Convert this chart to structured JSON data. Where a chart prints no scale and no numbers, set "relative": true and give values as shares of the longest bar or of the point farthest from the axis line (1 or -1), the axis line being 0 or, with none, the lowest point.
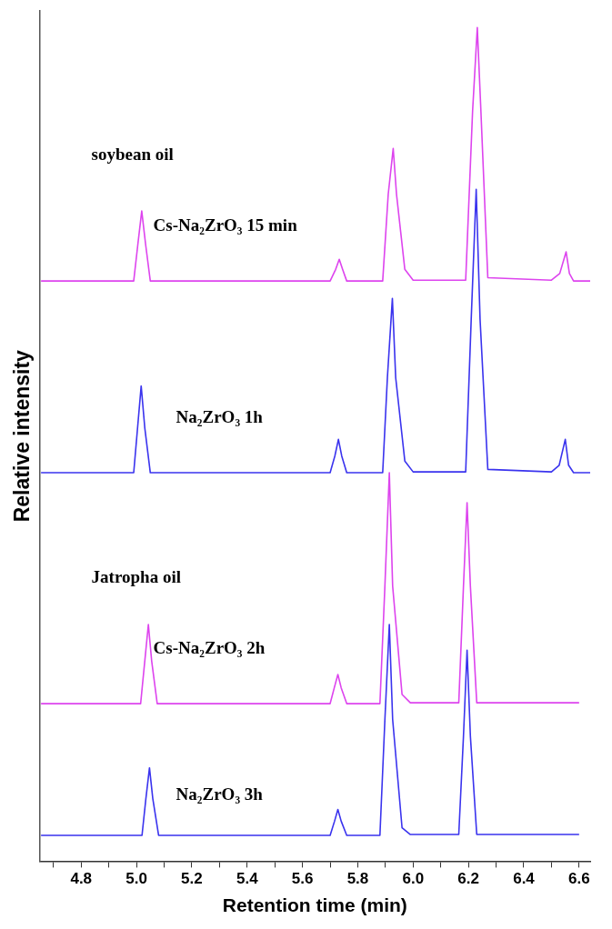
{
  "chart_data": {
    "type": "line",
    "relative": true,
    "xlabel": "Retention time (min)",
    "ylabel": "Relative intensity",
    "annotations": [
      "soybean oil",
      "Jatropha oil"
    ],
    "xlim": [
      4.65,
      6.64
    ],
    "xticks": [
      {
        "value": 4.7,
        "label": null
      },
      4.8,
      {
        "value": 4.9,
        "label": null
      },
      {
        "value": 5.0,
        "label": "5.0"
      },
      {
        "value": 5.1,
        "label": null
      },
      5.2,
      {
        "value": 5.3,
        "label": null
      },
      5.4,
      {
        "value": 5.5,
        "label": null
      },
      5.6,
      {
        "value": 5.7,
        "label": null
      },
      5.8,
      {
        "value": 5.9,
        "label": null
      },
      {
        "value": 6.0,
        "label": "6.0"
      },
      {
        "value": 6.1,
        "label": null
      },
      6.2,
      {
        "value": 6.3,
        "label": null
      },
      6.4,
      {
        "value": 6.5,
        "label": null
      },
      6.6
    ],
    "grid": false,
    "legend": false,
    "marker": "none",
    "line_style": "solid",
    "series": [
      {
        "name": "Cs-Na₂ZrO₃ 15 min",
        "color": "#dd44ee",
        "x": [
          4.655,
          4.99,
          5.005,
          5.019,
          5.033,
          5.05,
          5.7,
          5.72,
          5.733,
          5.745,
          5.76,
          5.89,
          5.91,
          5.928,
          5.94,
          5.97,
          6.0,
          6.19,
          6.215,
          6.232,
          6.245,
          6.27,
          6.5,
          6.53,
          6.553,
          6.565,
          6.58,
          6.64
        ],
        "values": [
          0.696,
          0.696,
          0.74,
          0.78,
          0.74,
          0.696,
          0.696,
          0.71,
          0.722,
          0.71,
          0.696,
          0.696,
          0.8,
          0.855,
          0.8,
          0.71,
          0.697,
          0.697,
          0.9,
          1.0,
          0.9,
          0.7,
          0.697,
          0.705,
          0.731,
          0.705,
          0.696,
          0.696
        ]
      },
      {
        "name": "Na₂ZrO₃ 1h",
        "color": "#3a33ee",
        "x": [
          4.655,
          4.99,
          5.004,
          5.017,
          5.03,
          5.05,
          5.7,
          5.717,
          5.73,
          5.742,
          5.76,
          5.89,
          5.907,
          5.925,
          5.937,
          5.97,
          6.0,
          6.19,
          6.21,
          6.228,
          6.242,
          6.27,
          6.5,
          6.528,
          6.55,
          6.562,
          6.58,
          6.64
        ],
        "values": [
          0.466,
          0.466,
          0.52,
          0.57,
          0.52,
          0.466,
          0.466,
          0.486,
          0.506,
          0.486,
          0.466,
          0.466,
          0.58,
          0.675,
          0.58,
          0.48,
          0.467,
          0.467,
          0.65,
          0.806,
          0.65,
          0.47,
          0.467,
          0.475,
          0.506,
          0.475,
          0.466,
          0.466
        ]
      },
      {
        "name": "Cs-Na₂ZrO₃ 2h",
        "color": "#dd44ee",
        "x": [
          4.655,
          5.015,
          5.03,
          5.043,
          5.055,
          5.075,
          5.7,
          5.715,
          5.728,
          5.74,
          5.76,
          5.88,
          5.898,
          5.914,
          5.926,
          5.96,
          5.99,
          6.165,
          6.182,
          6.195,
          6.207,
          6.23,
          6.6
        ],
        "values": [
          0.189,
          0.189,
          0.24,
          0.284,
          0.24,
          0.189,
          0.189,
          0.208,
          0.224,
          0.208,
          0.189,
          0.189,
          0.33,
          0.466,
          0.33,
          0.2,
          0.19,
          0.19,
          0.33,
          0.43,
          0.33,
          0.19,
          0.19
        ]
      },
      {
        "name": "Na₂ZrO₃ 3h",
        "color": "#3a33ee",
        "x": [
          4.655,
          5.02,
          5.034,
          5.047,
          5.059,
          5.08,
          5.7,
          5.716,
          5.728,
          5.74,
          5.76,
          5.88,
          5.898,
          5.914,
          5.926,
          5.96,
          5.99,
          6.165,
          6.182,
          6.195,
          6.207,
          6.23,
          6.6
        ],
        "values": [
          0.031,
          0.031,
          0.075,
          0.112,
          0.075,
          0.031,
          0.031,
          0.048,
          0.062,
          0.048,
          0.031,
          0.031,
          0.17,
          0.284,
          0.17,
          0.04,
          0.032,
          0.032,
          0.15,
          0.253,
          0.15,
          0.032,
          0.032
        ]
      }
    ]
  }
}
